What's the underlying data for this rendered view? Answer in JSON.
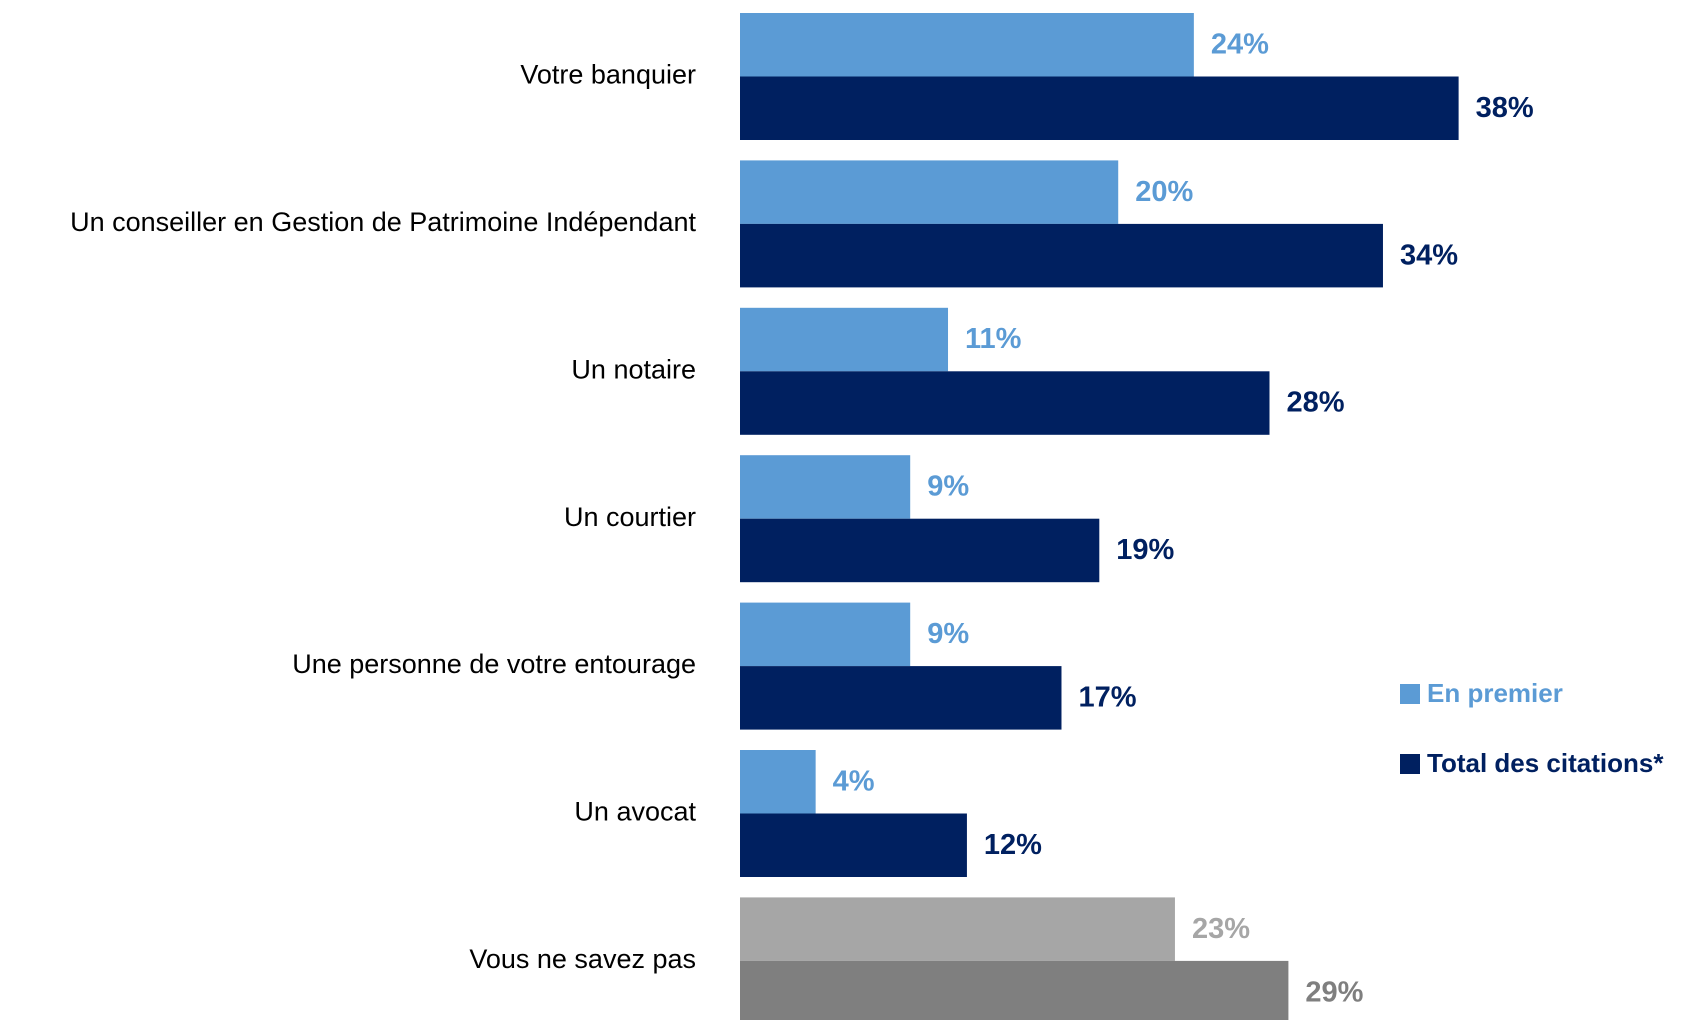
{
  "chart_data": {
    "type": "hbar",
    "categories": [
      "Votre banquier",
      "Un conseiller en Gestion de Patrimoine Indépendant",
      "Un notaire",
      "Un courtier",
      "Une personne de votre entourage",
      "Un avocat",
      "Vous ne savez pas"
    ],
    "series": [
      {
        "name": "En premier",
        "color": "#5b9bd5",
        "colors": [
          "#5b9bd5",
          "#5b9bd5",
          "#5b9bd5",
          "#5b9bd5",
          "#5b9bd5",
          "#5b9bd5",
          "#a6a6a6"
        ],
        "values": [
          24,
          20,
          11,
          9,
          9,
          4,
          23
        ],
        "value_labels": [
          "24%",
          "20%",
          "11%",
          "9%",
          "9%",
          "4%",
          "23%"
        ]
      },
      {
        "name": "Total des citations*",
        "color": "#002060",
        "colors": [
          "#002060",
          "#002060",
          "#002060",
          "#002060",
          "#002060",
          "#002060",
          "#7f7f7f"
        ],
        "values": [
          38,
          34,
          28,
          19,
          17,
          12,
          29
        ],
        "value_labels": [
          "38%",
          "34%",
          "28%",
          "19%",
          "17%",
          "12%",
          "29%"
        ]
      }
    ],
    "legend": "right"
  }
}
